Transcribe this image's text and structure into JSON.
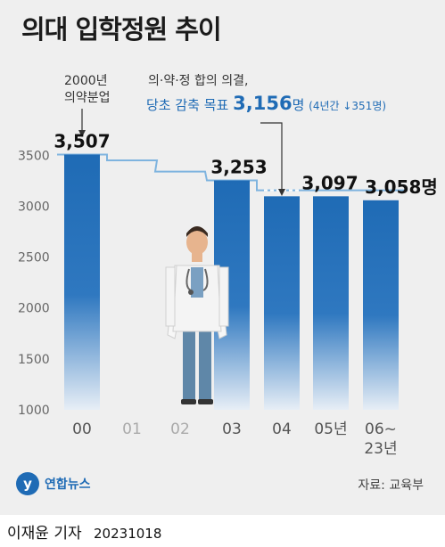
{
  "title": "의대 입학정원 추이",
  "annotation_2000": [
    "2000년",
    "의약분업"
  ],
  "goal": {
    "line1": "의·약·정 합의 의결,",
    "prefix": "당초 감축 목표",
    "value": "3,156",
    "unit": "명",
    "note": "(4년간 ↓351명)"
  },
  "source": "자료: 교육부",
  "logo_text": "연합뉴스",
  "byline": "이재윤 기자",
  "date": "20231018",
  "colors": {
    "bar": "#1f6bb5",
    "line": "#7fb4df",
    "goal": "#1f6bb5"
  },
  "chart_data": {
    "type": "bar",
    "categories": [
      "00",
      "01",
      "02",
      "03",
      "04",
      "05년",
      "06~23년"
    ],
    "category_lines": [
      [
        "00"
      ],
      [
        "01"
      ],
      [
        "02"
      ],
      [
        "03"
      ],
      [
        "04"
      ],
      [
        "05년"
      ],
      [
        "06~",
        "23년"
      ]
    ],
    "values": [
      3507,
      null,
      null,
      3253,
      3097,
      3097,
      3058
    ],
    "bar_labels": [
      "3,507",
      "",
      "",
      "3,253",
      "",
      "3,097",
      "3,058명"
    ],
    "step_line": [
      3507,
      3450,
      3340,
      3253,
      3156,
      3156,
      3156
    ],
    "yticks": [
      1000,
      1500,
      2000,
      2500,
      3000,
      3500
    ],
    "ylim": [
      1000,
      3800
    ],
    "grid": false
  }
}
